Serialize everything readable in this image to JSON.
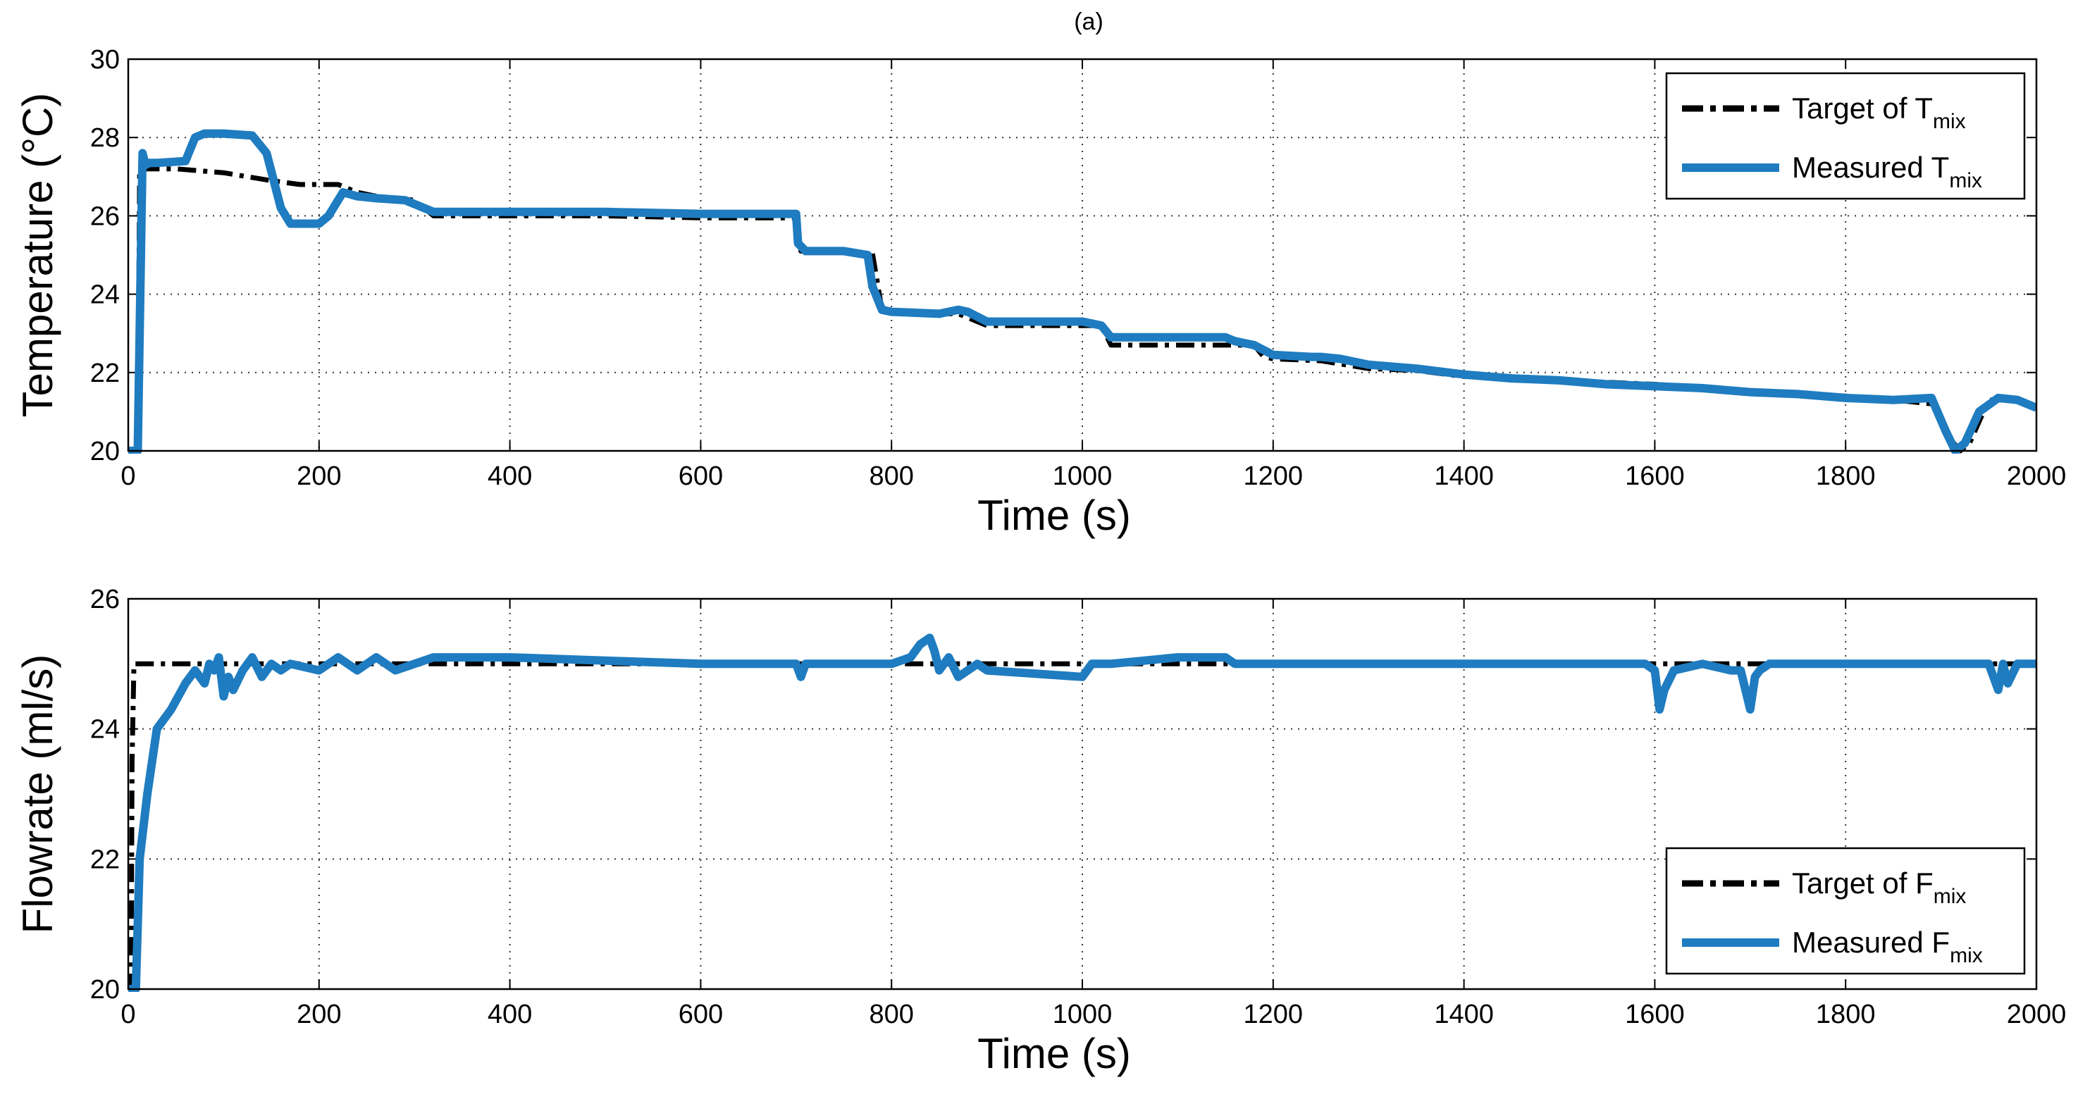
{
  "figure": {
    "caption": "(a)"
  },
  "colors": {
    "target": "#000000",
    "measured": "#1f7cc0",
    "grid": "#333333",
    "axis": "#000000"
  },
  "chart_data": [
    {
      "type": "line",
      "xlabel": "Time (s)",
      "ylabel": "Temperature (°C)",
      "xlim": [
        0,
        2000
      ],
      "ylim": [
        20,
        30
      ],
      "xticks": [
        "0",
        "200",
        "400",
        "600",
        "800",
        "1000",
        "1200",
        "1400",
        "1600",
        "1800",
        "2000"
      ],
      "yticks": [
        "20",
        "22",
        "24",
        "26",
        "28",
        "30"
      ],
      "grid": true,
      "legend_position": "top-right",
      "series": [
        {
          "name": "Target of T",
          "subscript": "mix",
          "style": "dash-dot",
          "x": [
            0,
            10,
            12,
            20,
            50,
            100,
            150,
            180,
            200,
            220,
            240,
            260,
            300,
            320,
            400,
            500,
            600,
            700,
            705,
            780,
            790,
            800,
            850,
            870,
            900,
            1000,
            1020,
            1030,
            1100,
            1150,
            1180,
            1190,
            1200,
            1250,
            1300,
            1350,
            1400,
            1500,
            1600,
            1650,
            1700,
            1750,
            1800,
            1850,
            1890,
            1910,
            1920,
            1930,
            1950,
            1980,
            2000
          ],
          "y": [
            20,
            20,
            27.2,
            27.2,
            27.2,
            27.1,
            26.9,
            26.8,
            26.8,
            26.8,
            26.6,
            26.5,
            26.4,
            26.0,
            26.0,
            26.0,
            25.95,
            25.95,
            25.1,
            25.05,
            23.6,
            23.5,
            23.5,
            23.5,
            23.2,
            23.2,
            23.2,
            22.7,
            22.7,
            22.7,
            22.7,
            22.4,
            22.35,
            22.3,
            22.1,
            22.05,
            21.9,
            21.8,
            21.7,
            21.6,
            21.5,
            21.45,
            21.4,
            21.3,
            21.2,
            20.3,
            20.0,
            20.2,
            21.3,
            21.3,
            21.1
          ]
        },
        {
          "name": "Measured T",
          "subscript": "mix",
          "style": "solid",
          "x": [
            0,
            10,
            15,
            18,
            22,
            30,
            60,
            70,
            80,
            100,
            130,
            145,
            160,
            170,
            200,
            210,
            225,
            240,
            260,
            290,
            300,
            320,
            400,
            500,
            600,
            700,
            702,
            710,
            750,
            775,
            780,
            790,
            800,
            850,
            870,
            880,
            900,
            950,
            1000,
            1010,
            1020,
            1030,
            1100,
            1150,
            1160,
            1180,
            1200,
            1240,
            1250,
            1270,
            1300,
            1350,
            1400,
            1450,
            1500,
            1550,
            1600,
            1650,
            1700,
            1750,
            1800,
            1850,
            1890,
            1905,
            1915,
            1925,
            1940,
            1960,
            1980,
            2000
          ],
          "y": [
            20,
            20,
            27.6,
            27.3,
            27.35,
            27.35,
            27.4,
            28.0,
            28.1,
            28.1,
            28.05,
            27.6,
            26.2,
            25.8,
            25.8,
            26.0,
            26.6,
            26.5,
            26.45,
            26.4,
            26.3,
            26.1,
            26.1,
            26.1,
            26.05,
            26.05,
            25.3,
            25.1,
            25.1,
            25.0,
            24.2,
            23.6,
            23.55,
            23.5,
            23.6,
            23.55,
            23.3,
            23.3,
            23.3,
            23.25,
            23.2,
            22.9,
            22.9,
            22.9,
            22.8,
            22.7,
            22.45,
            22.4,
            22.4,
            22.35,
            22.2,
            22.1,
            21.95,
            21.85,
            21.8,
            21.7,
            21.65,
            21.6,
            21.5,
            21.45,
            21.35,
            21.3,
            21.35,
            20.5,
            20.0,
            20.2,
            21.0,
            21.35,
            21.3,
            21.1
          ]
        }
      ]
    },
    {
      "type": "line",
      "xlabel": "Time (s)",
      "ylabel": "Flowrate (ml/s)",
      "xlim": [
        0,
        2000
      ],
      "ylim": [
        20,
        26
      ],
      "xticks": [
        "0",
        "200",
        "400",
        "600",
        "800",
        "1000",
        "1200",
        "1400",
        "1600",
        "1800",
        "2000"
      ],
      "yticks": [
        "20",
        "22",
        "24",
        "26"
      ],
      "grid": true,
      "legend_position": "bottom-right",
      "series": [
        {
          "name": "Target of F",
          "subscript": "mix",
          "style": "dash-dot",
          "x": [
            0,
            3,
            4,
            6,
            2000
          ],
          "y": [
            20,
            20,
            23.5,
            25.0,
            25.0
          ]
        },
        {
          "name": "Measured F",
          "subscript": "mix",
          "style": "solid",
          "x": [
            0,
            8,
            12,
            20,
            30,
            45,
            60,
            70,
            80,
            85,
            90,
            95,
            100,
            105,
            110,
            120,
            130,
            140,
            150,
            160,
            170,
            200,
            220,
            240,
            260,
            280,
            300,
            320,
            350,
            400,
            500,
            600,
            700,
            705,
            710,
            780,
            800,
            820,
            830,
            840,
            845,
            850,
            860,
            870,
            880,
            890,
            900,
            1000,
            1010,
            1020,
            1030,
            1100,
            1150,
            1160,
            1200,
            1300,
            1400,
            1500,
            1590,
            1600,
            1605,
            1610,
            1620,
            1650,
            1680,
            1690,
            1700,
            1705,
            1710,
            1720,
            1750,
            1800,
            1900,
            1950,
            1960,
            1965,
            1970,
            1980,
            2000
          ],
          "y": [
            20,
            20,
            22.0,
            23.0,
            24.0,
            24.3,
            24.7,
            24.9,
            24.7,
            25.0,
            24.9,
            25.1,
            24.5,
            24.8,
            24.6,
            24.9,
            25.1,
            24.8,
            25.0,
            24.9,
            25.0,
            24.9,
            25.1,
            24.9,
            25.1,
            24.9,
            25.0,
            25.1,
            25.1,
            25.1,
            25.05,
            25.0,
            25.0,
            24.8,
            25.0,
            25.0,
            25.0,
            25.1,
            25.3,
            25.4,
            25.2,
            24.9,
            25.1,
            24.8,
            24.9,
            25.0,
            24.9,
            24.8,
            25.0,
            25.0,
            25.0,
            25.1,
            25.1,
            25.0,
            25.0,
            25.0,
            25.0,
            25.0,
            25.0,
            24.9,
            24.3,
            24.6,
            24.9,
            25.0,
            24.9,
            24.9,
            24.3,
            24.8,
            24.9,
            25.0,
            25.0,
            25.0,
            25.0,
            25.0,
            24.6,
            25.0,
            24.7,
            25.0,
            25.0
          ]
        }
      ]
    }
  ]
}
